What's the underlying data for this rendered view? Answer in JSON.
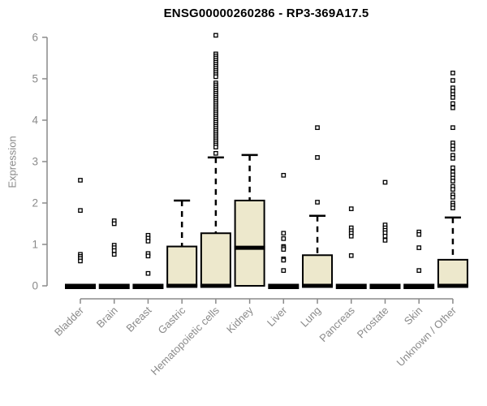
{
  "chart_data": {
    "type": "boxplot",
    "title": "ENSG00000260286 - RP3-369A17.5",
    "ylabel": "Expression",
    "xlabel": "",
    "ylim": [
      0,
      6
    ],
    "yticks": [
      0,
      1,
      2,
      3,
      4,
      5,
      6
    ],
    "grid": false,
    "legend": "none",
    "colors": {
      "box_fill": "#ede8cc",
      "box_stroke": "#000000",
      "median": "#000000",
      "whisker": "#000000",
      "outlier_fill": "#ffffff",
      "outlier_stroke": "#000000",
      "axis": "#8a8a8a",
      "tick_label": "#8a8a8a",
      "title": "#000000",
      "background": "#ffffff"
    },
    "categories": [
      "Bladder",
      "Brain",
      "Breast",
      "Gastric",
      "Hematopoietic cells",
      "Kidney",
      "Liver",
      "Lung",
      "Pancreas",
      "Prostate",
      "Skin",
      "Unknown / Other"
    ],
    "boxes": [
      {
        "label": "Bladder",
        "q1": 0,
        "median": 0,
        "q3": 0,
        "whisker_low": 0,
        "whisker_high": 0,
        "outliers": [
          2.55,
          1.82,
          0.76,
          0.71,
          0.66,
          0.6
        ]
      },
      {
        "label": "Brain",
        "q1": 0,
        "median": 0,
        "q3": 0,
        "whisker_low": 0,
        "whisker_high": 0,
        "outliers": [
          1.57,
          1.5,
          0.98,
          0.92,
          0.85,
          0.76
        ]
      },
      {
        "label": "Breast",
        "q1": 0,
        "median": 0,
        "q3": 0,
        "whisker_low": 0,
        "whisker_high": 0,
        "outliers": [
          1.22,
          1.15,
          1.08,
          0.78,
          0.72,
          0.3
        ]
      },
      {
        "label": "Gastric",
        "q1": 0,
        "median": 0,
        "q3": 0.95,
        "whisker_low": 0,
        "whisker_high": 2.06,
        "outliers": []
      },
      {
        "label": "Hematopoietic cells",
        "q1": 0,
        "median": 0,
        "q3": 1.27,
        "whisker_low": 0,
        "whisker_high": 3.1,
        "outliers": [
          6.05,
          5.6,
          5.55,
          5.5,
          5.45,
          5.4,
          5.35,
          5.3,
          5.25,
          5.2,
          5.15,
          5.1,
          5.05,
          4.9,
          4.85,
          4.8,
          4.75,
          4.7,
          4.65,
          4.6,
          4.55,
          4.5,
          4.45,
          4.4,
          4.35,
          4.3,
          4.25,
          4.2,
          4.15,
          4.1,
          4.05,
          4.0,
          3.95,
          3.9,
          3.85,
          3.8,
          3.75,
          3.7,
          3.65,
          3.6,
          3.55,
          3.5,
          3.45,
          3.4,
          3.35,
          3.2
        ]
      },
      {
        "label": "Kidney",
        "q1": 0,
        "median": 0.92,
        "q3": 2.06,
        "whisker_low": 0,
        "whisker_high": 3.16,
        "outliers": []
      },
      {
        "label": "Liver",
        "q1": 0,
        "median": 0,
        "q3": 0,
        "whisker_low": 0,
        "whisker_high": 0,
        "outliers": [
          2.67,
          1.27,
          1.14,
          0.95,
          0.92,
          0.88,
          0.65,
          0.62,
          0.37
        ]
      },
      {
        "label": "Lung",
        "q1": 0,
        "median": 0,
        "q3": 0.74,
        "whisker_low": 0,
        "whisker_high": 1.69,
        "outliers": [
          3.82,
          3.1,
          2.02
        ]
      },
      {
        "label": "Pancreas",
        "q1": 0,
        "median": 0,
        "q3": 0,
        "whisker_low": 0,
        "whisker_high": 0,
        "outliers": [
          1.86,
          1.4,
          1.33,
          1.27,
          1.2,
          0.73
        ]
      },
      {
        "label": "Prostate",
        "q1": 0,
        "median": 0,
        "q3": 0,
        "whisker_low": 0,
        "whisker_high": 0,
        "outliers": [
          2.5,
          1.47,
          1.4,
          1.34,
          1.28,
          1.2,
          1.1
        ]
      },
      {
        "label": "Skin",
        "q1": 0,
        "median": 0,
        "q3": 0,
        "whisker_low": 0,
        "whisker_high": 0,
        "outliers": [
          1.3,
          1.24,
          0.92,
          0.37
        ]
      },
      {
        "label": "Unknown / Other",
        "q1": 0,
        "median": 0,
        "q3": 0.63,
        "whisker_low": 0,
        "whisker_high": 1.65,
        "outliers": [
          5.14,
          4.96,
          4.78,
          4.7,
          4.62,
          4.55,
          4.4,
          4.3,
          3.82,
          3.45,
          3.38,
          3.3,
          3.15,
          3.08,
          2.85,
          2.75,
          2.68,
          2.6,
          2.53,
          2.4,
          2.33,
          2.2,
          2.14,
          2.0,
          1.94,
          1.88
        ]
      }
    ]
  }
}
